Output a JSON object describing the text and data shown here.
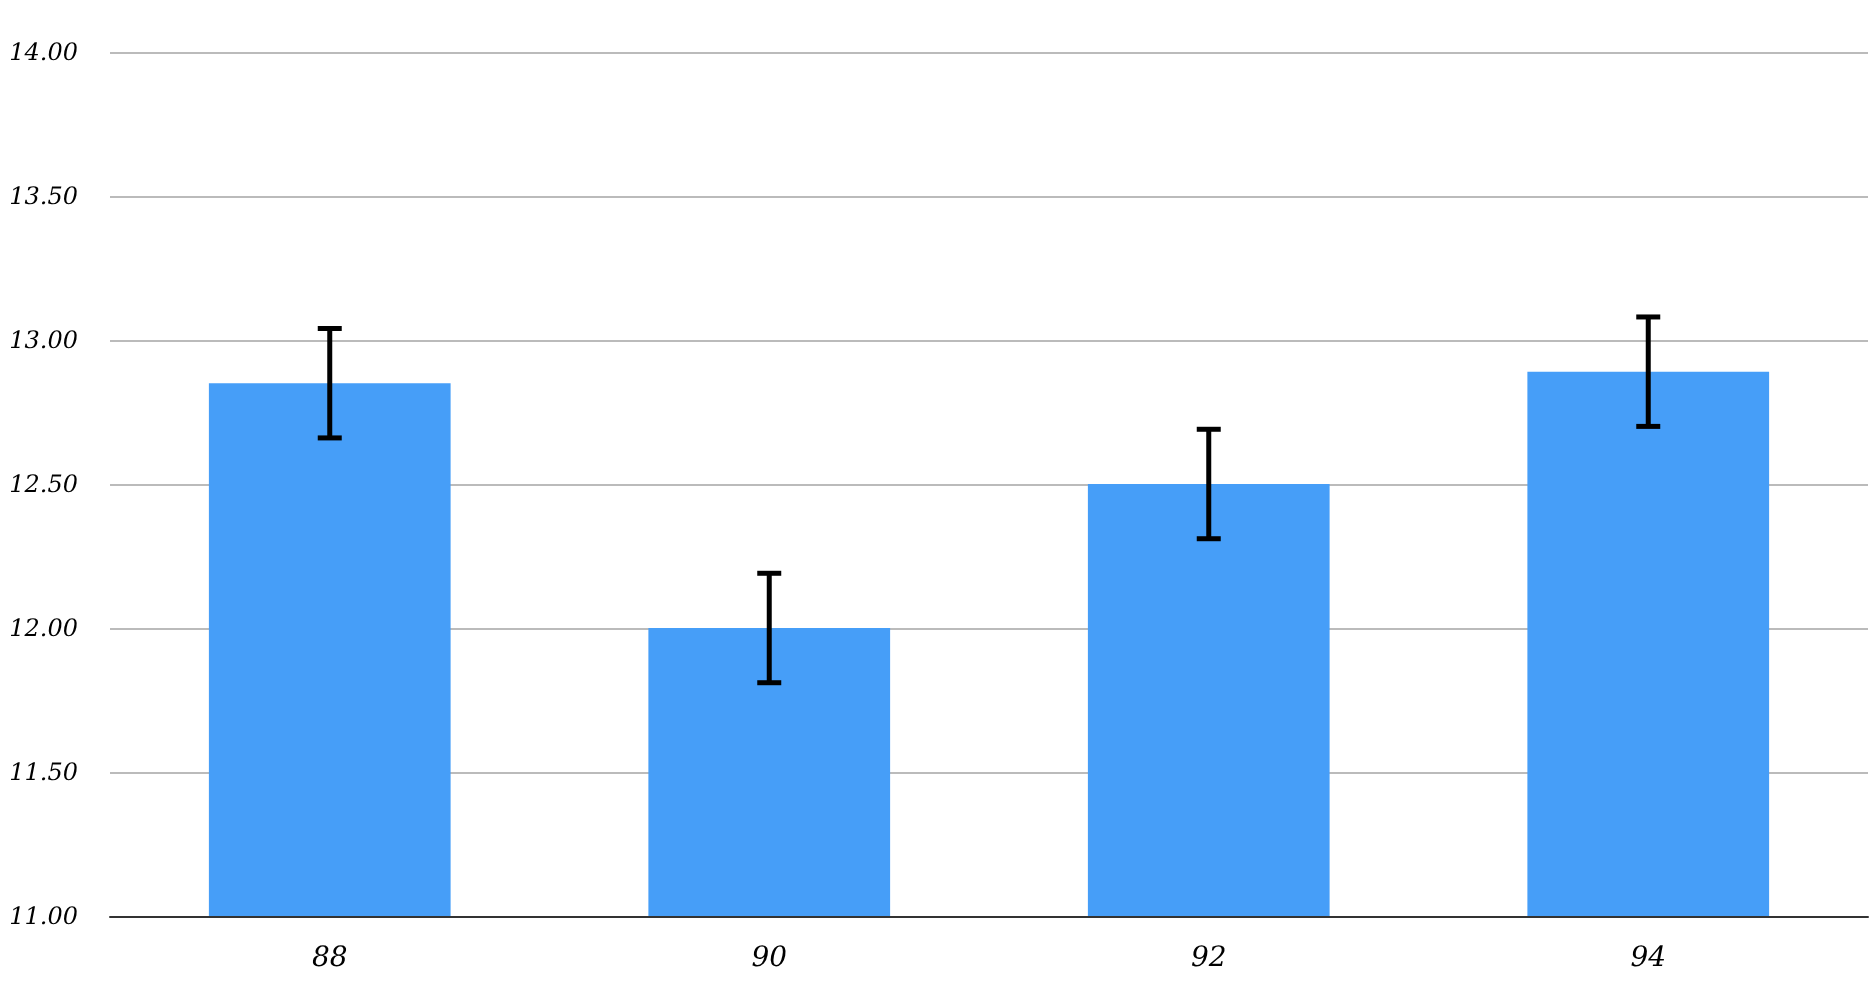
{
  "chart_data": {
    "type": "bar",
    "categories": [
      "88",
      "90",
      "92",
      "94"
    ],
    "values": [
      12.85,
      12.0,
      12.5,
      12.89
    ],
    "color": "#469ef8",
    "errors": [
      0.19,
      0.19,
      0.19,
      0.19
    ],
    "ylim": [
      11,
      14
    ],
    "yticks": [
      {
        "value": 11,
        "label": "11.00"
      },
      {
        "value": 11.5,
        "label": "11.50"
      },
      {
        "value": 12,
        "label": "12.00"
      },
      {
        "value": 12.5,
        "label": "12.50"
      },
      {
        "value": 13,
        "label": "13.00"
      },
      {
        "value": 13.5,
        "label": "13.50"
      },
      {
        "value": 14,
        "label": "14.00"
      }
    ],
    "grid": "y"
  }
}
